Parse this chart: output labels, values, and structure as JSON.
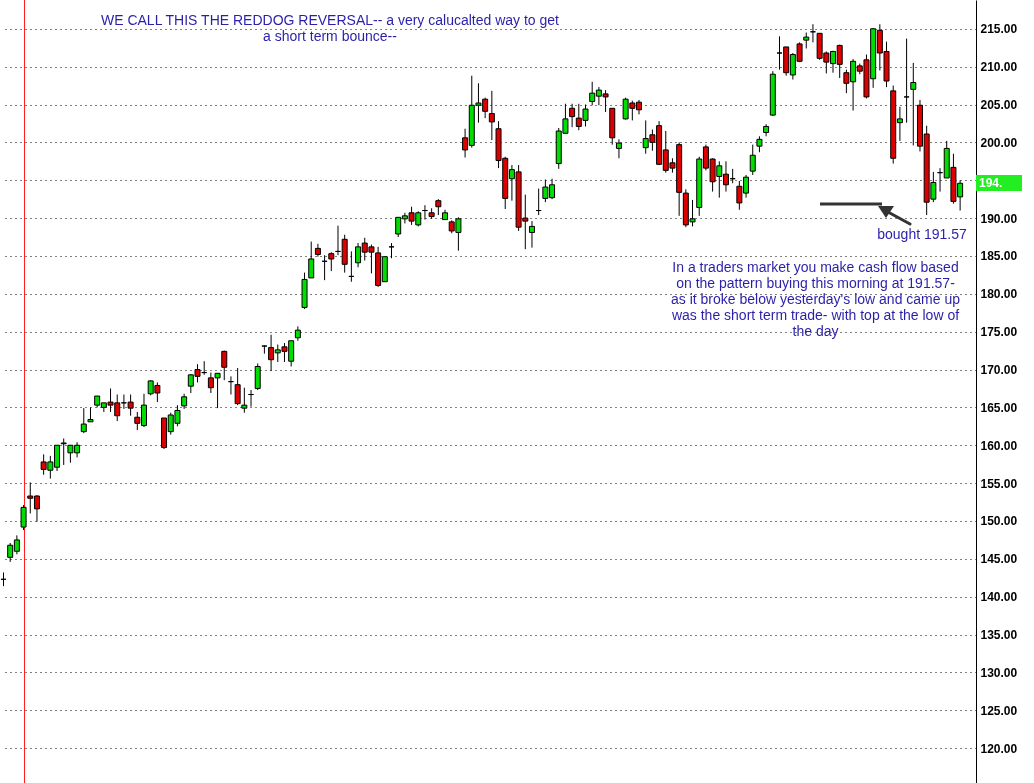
{
  "chart_data": {
    "type": "candlestick",
    "categories": [
      null,
      null,
      null,
      null,
      null,
      null,
      null,
      null,
      null,
      null,
      null,
      null,
      null,
      null,
      null,
      null,
      null,
      null,
      null,
      null,
      null,
      null,
      null,
      null,
      null,
      null,
      null,
      null,
      null,
      null,
      null,
      null,
      null,
      null,
      null,
      null,
      null,
      null,
      null,
      null,
      null,
      null,
      null,
      null,
      null,
      null,
      null,
      null,
      null,
      null,
      null,
      null,
      null,
      null,
      null,
      null,
      null,
      null,
      null,
      null,
      null,
      null,
      null,
      null,
      null,
      null,
      null,
      null,
      null,
      null,
      null,
      null,
      null,
      null,
      null,
      null,
      null,
      null,
      null,
      null,
      null,
      null,
      null,
      null,
      null,
      null,
      null,
      null,
      null,
      null,
      null,
      null,
      null,
      null,
      null,
      null,
      null,
      null,
      null,
      null,
      null,
      null,
      null,
      null,
      null,
      null,
      null,
      null,
      null,
      null,
      null,
      null,
      null,
      null,
      null,
      null,
      null,
      null,
      null,
      null,
      null,
      null,
      null,
      null,
      null,
      null,
      null,
      null,
      null,
      null,
      null,
      null,
      null,
      null,
      null,
      null,
      null,
      null,
      null,
      null,
      null,
      null,
      null,
      null
    ],
    "ohlc": [
      [
        142.3,
        143.2,
        141.4,
        142.3
      ],
      [
        145.2,
        147.1,
        144.6,
        146.8
      ],
      [
        146.0,
        148.1,
        145.6,
        147.5
      ],
      [
        149.2,
        152.1,
        148.8,
        151.8
      ],
      [
        153.3,
        155.1,
        151.0,
        153.0
      ],
      [
        153.3,
        153.4,
        149.9,
        151.6
      ],
      [
        157.8,
        158.8,
        156.1,
        156.8
      ],
      [
        156.7,
        158.6,
        155.6,
        157.8
      ],
      [
        157.1,
        160.0,
        156.6,
        160.0
      ],
      [
        160.3,
        160.9,
        157.4,
        160.2
      ],
      [
        159.0,
        160.0,
        157.7,
        160.0
      ],
      [
        159.0,
        160.4,
        158.4,
        160.0
      ],
      [
        161.8,
        164.9,
        161.6,
        162.8
      ],
      [
        163.1,
        165.0,
        163.1,
        163.4
      ],
      [
        165.3,
        166.5,
        165.0,
        166.5
      ],
      [
        165.0,
        165.6,
        164.4,
        165.6
      ],
      [
        165.7,
        167.5,
        164.4,
        165.3
      ],
      [
        165.6,
        166.7,
        163.2,
        163.9
      ],
      [
        165.6,
        166.7,
        164.8,
        165.6
      ],
      [
        165.7,
        166.7,
        163.9,
        164.9
      ],
      [
        163.7,
        164.4,
        162.0,
        162.9
      ],
      [
        162.6,
        166.8,
        162.4,
        165.3
      ],
      [
        166.8,
        168.6,
        166.6,
        168.5
      ],
      [
        167.9,
        168.3,
        165.7,
        166.9
      ],
      [
        163.6,
        163.6,
        159.5,
        159.7
      ],
      [
        161.8,
        164.3,
        161.4,
        164.0
      ],
      [
        162.9,
        165.3,
        162.5,
        164.6
      ],
      [
        165.2,
        166.8,
        164.8,
        166.4
      ],
      [
        167.8,
        169.4,
        166.9,
        169.3
      ],
      [
        170.0,
        170.7,
        168.3,
        169.1
      ],
      [
        169.6,
        171.1,
        169.3,
        169.6
      ],
      [
        168.9,
        169.6,
        166.9,
        167.6
      ],
      [
        168.9,
        169.5,
        164.9,
        169.5
      ],
      [
        172.4,
        172.5,
        168.6,
        170.3
      ],
      [
        168.4,
        169.1,
        166.7,
        168.4
      ],
      [
        168.0,
        170.2,
        165.3,
        165.5
      ],
      [
        164.9,
        167.6,
        164.3,
        165.3
      ],
      [
        166.7,
        167.3,
        165.1,
        166.7
      ],
      [
        167.5,
        170.8,
        167.3,
        170.4
      ],
      [
        173.1,
        173.2,
        172.1,
        173.1
      ],
      [
        172.9,
        174.6,
        169.8,
        171.3
      ],
      [
        172.2,
        173.3,
        171.0,
        172.6
      ],
      [
        173.0,
        173.5,
        171.0,
        172.4
      ],
      [
        171.1,
        173.8,
        170.4,
        173.8
      ],
      [
        174.2,
        175.7,
        173.8,
        175.2
      ],
      [
        178.2,
        182.8,
        178.0,
        181.9
      ],
      [
        182.1,
        186.9,
        182.1,
        184.6
      ],
      [
        186.0,
        186.6,
        184.9,
        185.2
      ],
      [
        184.3,
        185.1,
        181.8,
        184.3
      ],
      [
        185.3,
        185.5,
        183.0,
        184.6
      ],
      [
        185.6,
        189.0,
        185.1,
        185.6
      ],
      [
        187.2,
        187.8,
        182.8,
        183.9
      ],
      [
        182.3,
        185.6,
        181.6,
        182.3
      ],
      [
        184.1,
        186.7,
        183.5,
        186.2
      ],
      [
        186.7,
        187.4,
        184.4,
        185.5
      ],
      [
        186.2,
        186.5,
        182.7,
        185.5
      ],
      [
        185.4,
        186.2,
        180.9,
        181.1
      ],
      [
        181.6,
        184.9,
        181.6,
        184.9
      ],
      [
        186.2,
        186.7,
        184.7,
        186.2
      ],
      [
        187.9,
        190.1,
        187.5,
        190.1
      ],
      [
        189.9,
        190.7,
        189.3,
        190.3
      ],
      [
        190.7,
        191.5,
        189.1,
        189.6
      ],
      [
        189.1,
        190.9,
        188.9,
        190.7
      ],
      [
        191.0,
        191.7,
        189.8,
        191.0
      ],
      [
        190.7,
        191.3,
        189.9,
        190.2
      ],
      [
        192.3,
        192.5,
        190.4,
        191.5
      ],
      [
        189.8,
        191.1,
        189.8,
        190.7
      ],
      [
        189.5,
        189.7,
        188.0,
        188.3
      ],
      [
        188.1,
        190.1,
        185.7,
        189.9
      ],
      [
        200.6,
        201.8,
        198.0,
        199.0
      ],
      [
        199.6,
        208.8,
        199.3,
        204.9
      ],
      [
        204.9,
        207.8,
        202.6,
        205.2
      ],
      [
        205.7,
        205.9,
        203.2,
        204.1
      ],
      [
        203.8,
        206.8,
        200.3,
        202.7
      ],
      [
        201.8,
        202.8,
        196.6,
        197.6
      ],
      [
        197.9,
        198.1,
        191.2,
        192.6
      ],
      [
        195.2,
        197.0,
        192.3,
        196.4
      ],
      [
        196.1,
        197.0,
        188.3,
        188.8
      ],
      [
        190.0,
        193.1,
        185.9,
        189.6
      ],
      [
        188.1,
        189.6,
        186.1,
        188.9
      ],
      [
        191.0,
        193.9,
        190.4,
        191.0
      ],
      [
        192.6,
        195.1,
        192.1,
        194.1
      ],
      [
        192.7,
        195.2,
        192.5,
        194.4
      ],
      [
        197.2,
        201.9,
        196.5,
        201.5
      ],
      [
        201.2,
        205.1,
        201.2,
        203.1
      ],
      [
        204.5,
        205.1,
        202.0,
        203.4
      ],
      [
        203.2,
        205.1,
        201.6,
        202.1
      ],
      [
        202.9,
        205.0,
        202.1,
        204.4
      ],
      [
        205.4,
        208.0,
        204.9,
        206.5
      ],
      [
        206.1,
        207.3,
        204.9,
        206.9
      ],
      [
        206.4,
        206.9,
        204.0,
        206.0
      ],
      [
        204.5,
        204.5,
        199.7,
        200.6
      ],
      [
        199.2,
        200.4,
        197.9,
        199.9
      ],
      [
        203.1,
        205.9,
        203.0,
        205.7
      ],
      [
        205.2,
        205.5,
        202.9,
        204.5
      ],
      [
        205.3,
        205.6,
        203.7,
        204.3
      ],
      [
        199.3,
        202.9,
        198.5,
        200.5
      ],
      [
        201.0,
        201.7,
        198.9,
        200.0
      ],
      [
        202.2,
        202.8,
        197.0,
        197.1
      ],
      [
        199.0,
        201.5,
        196.0,
        196.3
      ],
      [
        197.3,
        197.9,
        196.0,
        196.6
      ],
      [
        199.7,
        200.0,
        190.3,
        193.4
      ],
      [
        193.3,
        193.8,
        188.8,
        189.1
      ],
      [
        189.5,
        192.4,
        188.9,
        189.9
      ],
      [
        191.4,
        198.1,
        190.3,
        197.8
      ],
      [
        199.4,
        199.7,
        196.3,
        196.6
      ],
      [
        197.8,
        197.9,
        193.5,
        194.8
      ],
      [
        195.5,
        197.5,
        192.7,
        196.9
      ],
      [
        195.8,
        197.5,
        193.5,
        194.4
      ],
      [
        195.2,
        196.5,
        194.6,
        195.2
      ],
      [
        194.2,
        194.9,
        191.1,
        192.0
      ],
      [
        193.3,
        195.7,
        192.7,
        195.4
      ],
      [
        196.2,
        199.7,
        195.7,
        198.3
      ],
      [
        199.5,
        200.8,
        198.7,
        200.4
      ],
      [
        201.3,
        202.4,
        200.8,
        202.1
      ],
      [
        203.6,
        209.4,
        203.5,
        209.0
      ],
      [
        211.8,
        214.0,
        209.6,
        211.8
      ],
      [
        212.6,
        212.6,
        208.8,
        209.2
      ],
      [
        208.9,
        211.8,
        208.3,
        211.6
      ],
      [
        213.0,
        213.2,
        210.6,
        210.7
      ],
      [
        213.5,
        214.5,
        212.4,
        213.9
      ],
      [
        214.6,
        215.6,
        213.2,
        214.6
      ],
      [
        214.4,
        214.4,
        210.9,
        211.1
      ],
      [
        211.8,
        212.0,
        209.1,
        210.6
      ],
      [
        210.4,
        212.1,
        209.2,
        212.0
      ],
      [
        212.8,
        212.9,
        208.5,
        210.3
      ],
      [
        209.2,
        209.6,
        206.5,
        207.8
      ],
      [
        208.0,
        211.0,
        204.2,
        210.7
      ],
      [
        210.1,
        210.4,
        209.0,
        209.4
      ],
      [
        210.9,
        211.6,
        205.8,
        206.0
      ],
      [
        208.4,
        215.1,
        207.2,
        215.0
      ],
      [
        214.8,
        215.6,
        209.5,
        211.8
      ],
      [
        212.0,
        213.3,
        207.3,
        208.1
      ],
      [
        206.8,
        207.5,
        197.2,
        197.9
      ],
      [
        202.6,
        204.7,
        200.2,
        203.1
      ],
      [
        206.0,
        213.7,
        202.6,
        206.0
      ],
      [
        207.0,
        210.5,
        199.6,
        207.9
      ],
      [
        204.9,
        205.6,
        198.8,
        199.5
      ],
      [
        201.1,
        202.2,
        190.4,
        192.1
      ],
      [
        192.5,
        196.1,
        192.1,
        194.7
      ],
      [
        196.0,
        196.6,
        193.5,
        196.0
      ],
      [
        195.3,
        200.2,
        195.3,
        199.2
      ],
      [
        196.7,
        198.5,
        191.9,
        192.2
      ],
      [
        192.8,
        195.0,
        191.0,
        194.6
      ]
    ],
    "colors": [
      "#000000",
      "#00dd00",
      "#00dd00",
      "#00dd00",
      "#dd0000",
      "#dd0000",
      "#dd0000",
      "#00dd00",
      "#00dd00",
      "#dd0000",
      "#00dd00",
      "#00dd00",
      "#00dd00",
      "#00dd00",
      "#00dd00",
      "#00dd00",
      "#dd0000",
      "#dd0000",
      "#000000",
      "#dd0000",
      "#dd0000",
      "#00dd00",
      "#00dd00",
      "#dd0000",
      "#dd0000",
      "#00dd00",
      "#00dd00",
      "#00dd00",
      "#00dd00",
      "#dd0000",
      "#000000",
      "#dd0000",
      "#00dd00",
      "#dd0000",
      "#000000",
      "#dd0000",
      "#00dd00",
      "#000000",
      "#00dd00",
      "#000000",
      "#dd0000",
      "#00dd00",
      "#dd0000",
      "#00dd00",
      "#00dd00",
      "#00dd00",
      "#00dd00",
      "#dd0000",
      "#000000",
      "#dd0000",
      "#000000",
      "#dd0000",
      "#000000",
      "#00dd00",
      "#dd0000",
      "#dd0000",
      "#dd0000",
      "#00dd00",
      "#000000",
      "#00dd00",
      "#00dd00",
      "#dd0000",
      "#00dd00",
      "#000000",
      "#dd0000",
      "#dd0000",
      "#00dd00",
      "#dd0000",
      "#00dd00",
      "#dd0000",
      "#00dd00",
      "#00dd00",
      "#dd0000",
      "#dd0000",
      "#dd0000",
      "#dd0000",
      "#00dd00",
      "#dd0000",
      "#dd0000",
      "#00dd00",
      "#000000",
      "#00dd00",
      "#00dd00",
      "#00dd00",
      "#00dd00",
      "#dd0000",
      "#dd0000",
      "#00dd00",
      "#00dd00",
      "#00dd00",
      "#dd0000",
      "#dd0000",
      "#00dd00",
      "#00dd00",
      "#dd0000",
      "#dd0000",
      "#00dd00",
      "#dd0000",
      "#dd0000",
      "#dd0000",
      "#dd0000",
      "#dd0000",
      "#dd0000",
      "#00dd00",
      "#00dd00",
      "#dd0000",
      "#dd0000",
      "#00dd00",
      "#dd0000",
      "#000000",
      "#dd0000",
      "#00dd00",
      "#00dd00",
      "#00dd00",
      "#00dd00",
      "#00dd00",
      "#000000",
      "#dd0000",
      "#00dd00",
      "#dd0000",
      "#00dd00",
      "#000000",
      "#dd0000",
      "#dd0000",
      "#00dd00",
      "#dd0000",
      "#dd0000",
      "#00dd00",
      "#dd0000",
      "#dd0000",
      "#00dd00",
      "#dd0000",
      "#dd0000",
      "#dd0000",
      "#00dd00",
      "#000000",
      "#00dd00",
      "#dd0000",
      "#dd0000",
      "#00dd00",
      "#000000",
      "#00dd00",
      "#dd0000",
      "#00dd00"
    ],
    "ylim": [
      115.4,
      218.8
    ],
    "yticks": [
      {
        "value": 120,
        "label": "120.00"
      },
      {
        "value": 125,
        "label": "125.00"
      },
      {
        "value": 130,
        "label": "130.00"
      },
      {
        "value": 135,
        "label": "135.00"
      },
      {
        "value": 140,
        "label": "140.00"
      },
      {
        "value": 145,
        "label": "145.00"
      },
      {
        "value": 150,
        "label": "150.00"
      },
      {
        "value": 155,
        "label": "155.00"
      },
      {
        "value": 160,
        "label": "160.00"
      },
      {
        "value": 165,
        "label": "165.00"
      },
      {
        "value": 170,
        "label": "170.00"
      },
      {
        "value": 175,
        "label": "175.00"
      },
      {
        "value": 180,
        "label": "180.00"
      },
      {
        "value": 185,
        "label": "185.00"
      },
      {
        "value": 190,
        "label": "190.00"
      },
      {
        "value": 195,
        "label": null
      },
      {
        "value": 200,
        "label": "200.00"
      },
      {
        "value": 205,
        "label": "205.00"
      },
      {
        "value": 210,
        "label": "210.00"
      },
      {
        "value": 215,
        "label": "215.00"
      }
    ],
    "grid": "y",
    "tick_labels": "y",
    "annotations": [
      "WE CALL THIS THE REDDOG REVERSAL-- a very calucalted way to get a short term bounce--",
      "bought 191.57",
      "In a traders market you make cash flow based on the pattern buying this morning at 191.57- as it broke below yesterday's low and came up was the short term trade- with top at the low of the day",
      "194."
    ]
  }
}
